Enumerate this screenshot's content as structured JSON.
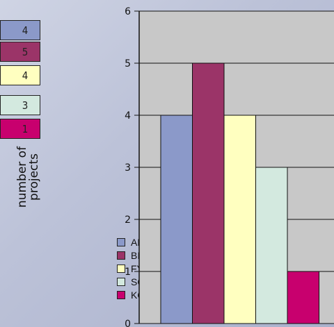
{
  "table": {
    "cells": [
      {
        "label": "ALB",
        "value": "4",
        "color": "#8b99c9"
      },
      {
        "label": "BIH",
        "value": "5",
        "color": "#9b3468"
      },
      {
        "label": "FYROM",
        "value": "4",
        "color": "#ffffc0"
      },
      {
        "label": "SCG",
        "value": "3",
        "color": "#d3e9df"
      },
      {
        "label": "KOSOVO",
        "value": "1",
        "color": "#c8006e"
      }
    ],
    "caption_line1": "number of",
    "caption_line2": "projects"
  },
  "legend": [
    {
      "label": "ALB",
      "color": "#8b99c9"
    },
    {
      "label": "BIH",
      "color": "#9b3468"
    },
    {
      "label": "FYROM",
      "color": "#ffffc0"
    },
    {
      "label": "SCG",
      "color": "#d3e9df"
    },
    {
      "label": "KOSOVO",
      "color": "#c8006e"
    }
  ],
  "chart_data": {
    "type": "bar",
    "categories": [
      "ALB",
      "BIH",
      "FYROM",
      "SCG",
      "KOSOVO"
    ],
    "values": [
      4,
      5,
      4,
      3,
      1
    ],
    "colors": [
      "#8b99c9",
      "#9b3468",
      "#ffffc0",
      "#d3e9df",
      "#c8006e"
    ],
    "ylim": [
      0,
      6
    ],
    "yticks": [
      "0",
      "1",
      "2",
      "3",
      "4",
      "5",
      "6"
    ],
    "grid": true,
    "plot_background": "#c8c8c8",
    "title": "",
    "xlabel": "",
    "ylabel": ""
  }
}
